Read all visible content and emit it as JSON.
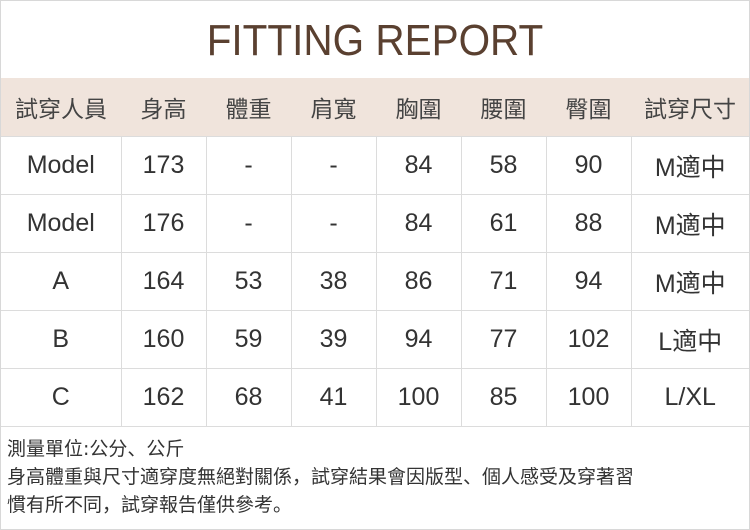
{
  "title": "FITTING REPORT",
  "colors": {
    "header_bg": "#f0e4dc",
    "title": "#5a4030"
  },
  "headers": [
    "試穿人員",
    "身高",
    "體重",
    "肩寬",
    "胸圍",
    "腰圍",
    "臀圍",
    "試穿尺寸"
  ],
  "rows": [
    [
      "Model",
      "173",
      "-",
      "-",
      "84",
      "58",
      "90",
      "M適中"
    ],
    [
      "Model",
      "176",
      "-",
      "-",
      "84",
      "61",
      "88",
      "M適中"
    ],
    [
      "A",
      "164",
      "53",
      "38",
      "86",
      "71",
      "94",
      "M適中"
    ],
    [
      "B",
      "160",
      "59",
      "39",
      "94",
      "77",
      "102",
      "L適中"
    ],
    [
      "C",
      "162",
      "68",
      "41",
      "100",
      "85",
      "100",
      "L/XL"
    ]
  ],
  "notes": [
    "測量單位:公分、公斤",
    "身高體重與尺寸適穿度無絕對關係，試穿結果會因版型、個人感受及穿著習",
    "慣有所不同，試穿報告僅供參考。"
  ]
}
